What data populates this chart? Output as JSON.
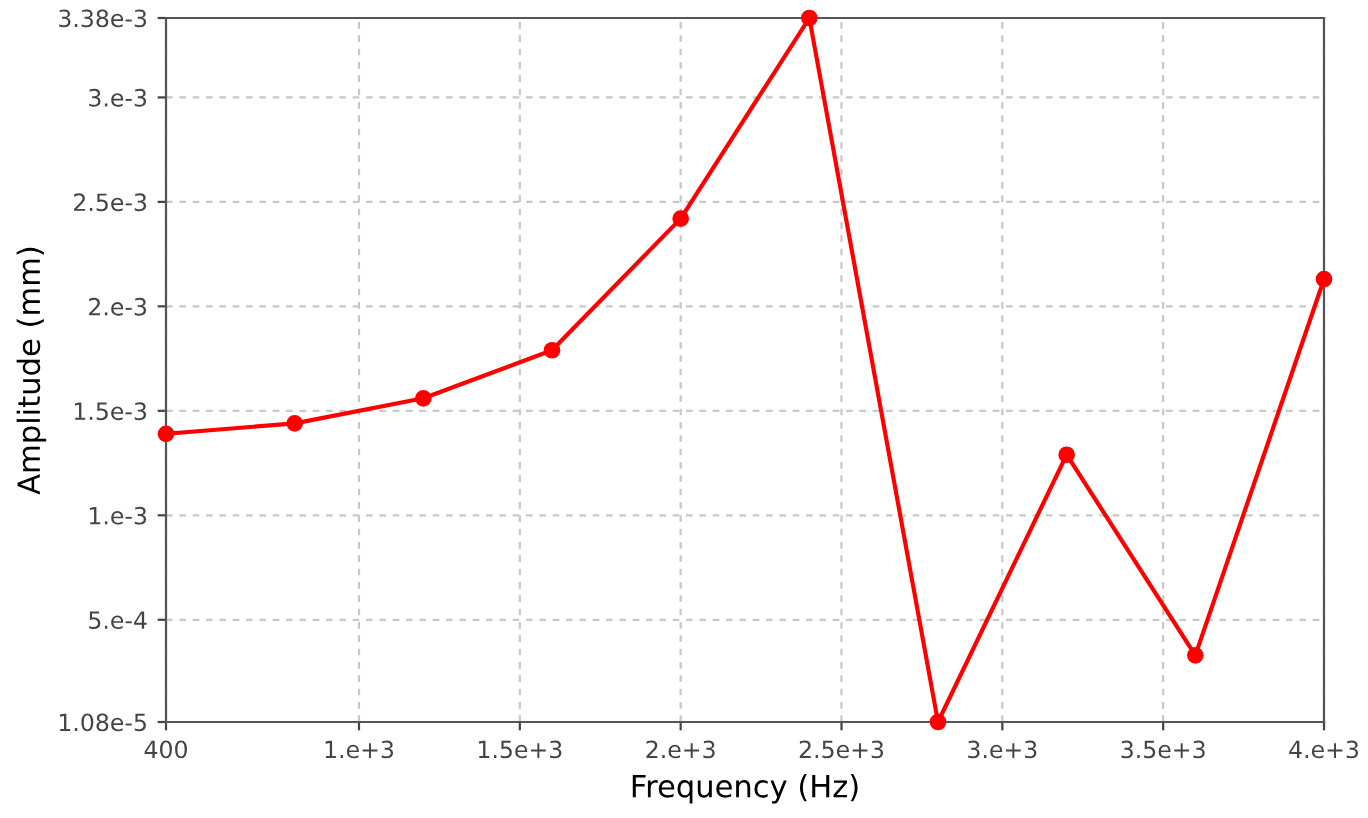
{
  "chart_data": {
    "type": "line",
    "xlabel": "Frequency (Hz)",
    "ylabel": "Amplitude (mm)",
    "x": [
      400,
      800,
      1200,
      1600,
      2000,
      2400,
      2800,
      3200,
      3600,
      4000
    ],
    "series": [
      {
        "color": "#ff0000",
        "values": [
          0.00139,
          0.00144,
          0.00156,
          0.00179,
          0.00242,
          0.00338,
          1.08e-05,
          0.00129,
          0.00033,
          0.00213
        ]
      }
    ],
    "xlim": [
      400,
      4000
    ],
    "xticks": [
      400,
      {
        "value": 1000,
        "label": "1.e+3"
      },
      {
        "value": 1500,
        "label": "1.5e+3"
      },
      {
        "value": 2000,
        "label": "2.e+3"
      },
      {
        "value": 2500,
        "label": "2.5e+3"
      },
      {
        "value": 3000,
        "label": "3.e+3"
      },
      {
        "value": 3500,
        "label": "3.5e+3"
      },
      {
        "value": 4000,
        "label": "4.e+3"
      }
    ],
    "ylim": [
      1.08e-05,
      0.00338
    ],
    "yticks": [
      {
        "value": 1.08e-05,
        "label": "1.08e-5"
      },
      {
        "value": 0.0005,
        "label": "5.e-4"
      },
      {
        "value": 0.001,
        "label": "1.e-3"
      },
      {
        "value": 0.0015,
        "label": "1.5e-3"
      },
      {
        "value": 0.002,
        "label": "2.e-3"
      },
      {
        "value": 0.0025,
        "label": "2.5e-3"
      },
      {
        "value": 0.003,
        "label": "3.e-3"
      },
      {
        "value": 0.00338,
        "label": "3.38e-3"
      }
    ],
    "grid": true,
    "marker": "circle",
    "line_style": "solid"
  }
}
